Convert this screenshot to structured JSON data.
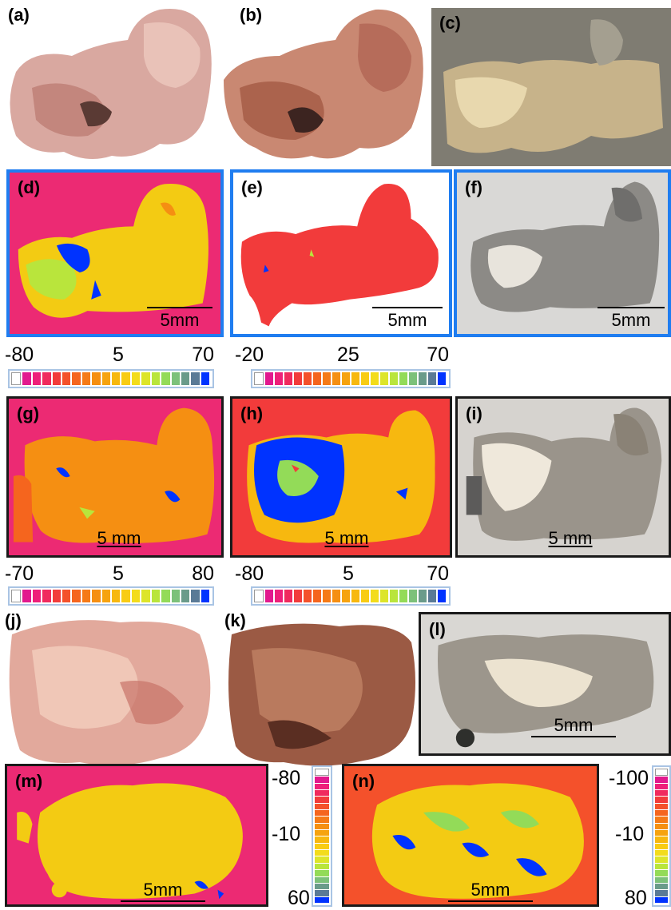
{
  "panels": {
    "a": {
      "label": "(a)"
    },
    "b": {
      "label": "(b)"
    },
    "c": {
      "label": "(c)"
    },
    "d": {
      "label": "(d)",
      "scale": "5mm"
    },
    "e": {
      "label": "(e)",
      "scale": "5mm"
    },
    "f": {
      "label": "(f)",
      "scale": "5mm"
    },
    "g": {
      "label": "(g)",
      "scale": "5 mm"
    },
    "h": {
      "label": "(h)",
      "scale": "5 mm"
    },
    "i": {
      "label": "(i)",
      "scale": "5 mm"
    },
    "j": {
      "label": "(j)"
    },
    "k": {
      "label": "(k)"
    },
    "l": {
      "label": "(l)",
      "scale": "5mm"
    },
    "m": {
      "label": "(m)",
      "scale": "5mm"
    },
    "n": {
      "label": "(n)",
      "scale": "5mm"
    }
  },
  "colorbars": {
    "de": {
      "min": "-80",
      "mid": "5",
      "max": "70"
    },
    "e2": {
      "min": "-20",
      "mid": "25",
      "max": "70"
    },
    "g": {
      "min": "-70",
      "mid": "5",
      "max": "80"
    },
    "h": {
      "min": "-80",
      "mid": "5",
      "max": "70"
    },
    "m": {
      "top": "-80",
      "mid": "-10",
      "bottom": "60"
    },
    "n": {
      "top": "-100",
      "mid": "-10",
      "bottom": "80"
    }
  },
  "palette": [
    "#ffffff",
    "#e2198e",
    "#ee1f7a",
    "#f02a5e",
    "#f23b3b",
    "#f4512b",
    "#f5651e",
    "#f57a17",
    "#f58f12",
    "#f6a30f",
    "#f7b80f",
    "#f8cc14",
    "#f3dc1c",
    "#dde52a",
    "#b9e53c",
    "#93db58",
    "#7cc17a",
    "#6a9b8a",
    "#5a7a96",
    "#0033ff"
  ],
  "border_colors": {
    "blue": "#1f7df0",
    "black": "#1a1a1a"
  }
}
